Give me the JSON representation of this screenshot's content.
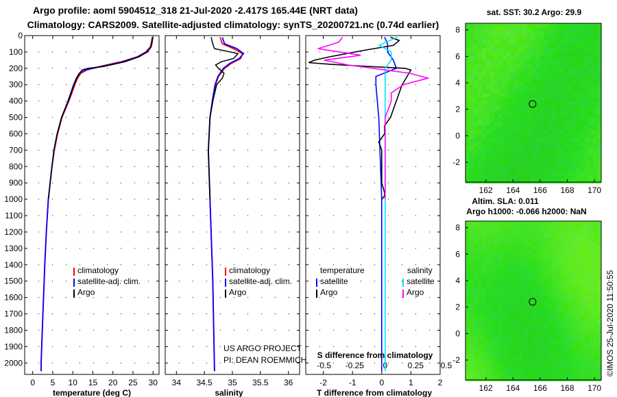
{
  "title": {
    "line1": "Argo profile: aoml 5904512_318 21-Jul-2020 -2.417S 165.44E (NRT data)",
    "line2": "Climatology: CARS2009. Satellite-adjusted climatology: synTS_20200721.nc (0.74d earlier)"
  },
  "colors": {
    "climatology": "#ff0000",
    "satellite": "#0000ff",
    "argo": "#000000",
    "s_satellite": "#00e0ff",
    "s_argo": "#ff00ff"
  },
  "depth_ticks": [
    "0",
    "100",
    "200",
    "300",
    "400",
    "500",
    "600",
    "700",
    "800",
    "900",
    "1000",
    "1100",
    "1200",
    "1300",
    "1400",
    "1500",
    "1600",
    "1700",
    "1800",
    "1900",
    "2000"
  ],
  "legend": {
    "climatology": "climatology",
    "satellite": "satellite-adj. clim.",
    "argo": "Argo"
  },
  "diff_legend": {
    "temperature": "temperature",
    "salinity": "salinity",
    "satellite": "satellite",
    "argo": "Argo"
  },
  "annotation": {
    "line1": "US ARGO PROJECT",
    "line2": "PI: DEAN ROEMMICH"
  },
  "maps": {
    "sst": {
      "title": "sat. SST: 30.2 Argo: 29.9",
      "xticks": [
        "162",
        "164",
        "166",
        "168",
        "170"
      ],
      "yticks": [
        "8",
        "6",
        "4",
        "2",
        "0",
        "-2"
      ]
    },
    "sla": {
      "title1": "Altim. SLA: 0.011",
      "title2": "Argo h1000: -0.066 h2000: NaN",
      "xticks": [
        "162",
        "164",
        "166",
        "168",
        "170"
      ],
      "yticks": [
        "8",
        "6",
        "4",
        "2",
        "0",
        "-2"
      ]
    },
    "credit": "©IMOS 25-Jul-2020 11:50:55"
  },
  "chart_data": [
    {
      "type": "line",
      "xlabel": "temperature (deg C)",
      "xlim": [
        -2,
        31.5
      ],
      "ylim": [
        2070,
        0
      ],
      "xticks": [
        "0",
        "5",
        "10",
        "15",
        "20",
        "25",
        "30"
      ],
      "series": [
        {
          "name": "climatology",
          "depth": [
            10,
            40,
            70,
            100,
            130,
            160,
            190,
            210,
            230,
            260,
            300,
            350,
            400,
            500,
            600,
            700,
            800,
            1000,
            1200,
            1400,
            1600,
            1800,
            2000,
            2050
          ],
          "values": [
            29.8,
            29.6,
            29.3,
            28.2,
            26,
            22,
            16.5,
            13.5,
            12,
            11.2,
            10.5,
            9.8,
            9,
            7.3,
            6.2,
            5.4,
            4.8,
            3.9,
            3.4,
            3,
            2.7,
            2.4,
            2.1,
            2.1
          ]
        },
        {
          "name": "satellite-adj. clim.",
          "depth": [
            10,
            40,
            70,
            100,
            130,
            160,
            190,
            210,
            230,
            260,
            300,
            350,
            400,
            500,
            600,
            700,
            800,
            1000,
            1200,
            1400,
            1600,
            1800,
            2000,
            2050
          ],
          "values": [
            29.9,
            29.7,
            29.5,
            28.4,
            26.2,
            22.5,
            17,
            13.2,
            11.6,
            10.9,
            10.2,
            9.5,
            8.8,
            7.2,
            6.1,
            5.3,
            4.8,
            3.9,
            3.4,
            3,
            2.7,
            2.4,
            2.1,
            2.1
          ]
        },
        {
          "name": "Argo",
          "depth": [
            10,
            40,
            70,
            100,
            130,
            160,
            190,
            200,
            210,
            230,
            260,
            300,
            350,
            400,
            500,
            600,
            700,
            800,
            1000
          ],
          "values": [
            29.9,
            29.8,
            29.5,
            28.6,
            26.5,
            23,
            17.5,
            13.8,
            12.3,
            11.7,
            11,
            10.3,
            9.6,
            8.9,
            7.2,
            6.1,
            5.3,
            4.8,
            3.9
          ]
        }
      ]
    },
    {
      "type": "line",
      "xlabel": "salinity",
      "xlim": [
        33.8,
        36.2
      ],
      "ylim": [
        2070,
        0
      ],
      "xticks": [
        "34",
        "34.5",
        "35",
        "35.5",
        "36"
      ],
      "series": [
        {
          "name": "climatology",
          "depth": [
            10,
            50,
            80,
            110,
            140,
            170,
            200,
            250,
            300,
            400,
            500,
            700,
            1000,
            1500,
            2050
          ],
          "values": [
            34.78,
            34.82,
            35.02,
            35.18,
            35.15,
            34.98,
            34.86,
            34.75,
            34.7,
            34.65,
            34.6,
            34.57,
            34.6,
            34.65,
            34.68
          ]
        },
        {
          "name": "satellite-adj. clim.",
          "depth": [
            10,
            50,
            80,
            110,
            140,
            170,
            200,
            250,
            300,
            400,
            500,
            700,
            1000,
            1500,
            2050
          ],
          "values": [
            34.82,
            34.86,
            35.08,
            35.2,
            35.12,
            34.95,
            34.84,
            34.74,
            34.69,
            34.64,
            34.6,
            34.57,
            34.6,
            34.65,
            34.68
          ]
        },
        {
          "name": "Argo",
          "depth": [
            10,
            50,
            80,
            110,
            140,
            160,
            180,
            200,
            230,
            260,
            300,
            400,
            500,
            700,
            1000
          ],
          "values": [
            34.62,
            34.65,
            34.68,
            35.1,
            35.02,
            34.8,
            34.7,
            34.75,
            34.85,
            34.82,
            34.72,
            34.65,
            34.6,
            34.57,
            34.6
          ]
        }
      ]
    },
    {
      "type": "line",
      "xlabel": "T difference from climatology",
      "xlabel_s": "S difference from climatology",
      "xlim": [
        -2.6,
        2.0
      ],
      "ylim": [
        2070,
        0
      ],
      "xticks": [
        "-2",
        "-1",
        "0",
        "1",
        "2"
      ],
      "xticks_s": [
        "-0.5",
        "-0.25",
        "0",
        "0.25",
        "0.5"
      ],
      "series": [
        {
          "name": "T satellite",
          "depth": [
            10,
            50,
            100,
            150,
            200,
            250,
            300,
            500,
            1000,
            2050
          ],
          "values": [
            0.1,
            0.2,
            0.2,
            0.4,
            0.5,
            -0.2,
            -0.2,
            -0.1,
            0,
            0
          ]
        },
        {
          "name": "T Argo",
          "depth": [
            10,
            30,
            60,
            90,
            110,
            130,
            150,
            165,
            175,
            190,
            200,
            210,
            240,
            270,
            300,
            350,
            400,
            450,
            500,
            550,
            600,
            650,
            700,
            800,
            900,
            960,
            980,
            1000
          ],
          "values": [
            0.3,
            0.6,
            0.4,
            -0.6,
            -1.2,
            -1.8,
            -2.3,
            -2.5,
            -1.8,
            -0.3,
            0.8,
            1,
            0.9,
            0.8,
            0.7,
            0.6,
            0.5,
            0.4,
            0.3,
            0.1,
            0.1,
            -0.1,
            0,
            0,
            0,
            0.1,
            0.1,
            0
          ]
        },
        {
          "name": "S satellite",
          "depth": [
            10,
            60,
            100,
            150,
            200,
            300,
            500,
            1000,
            2050
          ],
          "values": [
            0.1,
            -0.05,
            0.05,
            0.05,
            0,
            0,
            0,
            0,
            0
          ]
        },
        {
          "name": "S Argo",
          "depth": [
            10,
            40,
            80,
            120,
            150,
            180,
            200,
            230,
            260,
            300,
            350,
            400,
            500,
            600,
            700,
            1000
          ],
          "values": [
            -0.35,
            -0.38,
            -0.55,
            -0.2,
            -0.5,
            -0.3,
            -0.1,
            0.2,
            0.35,
            0.15,
            0.05,
            0.05,
            0,
            0,
            0,
            0
          ]
        }
      ]
    }
  ]
}
